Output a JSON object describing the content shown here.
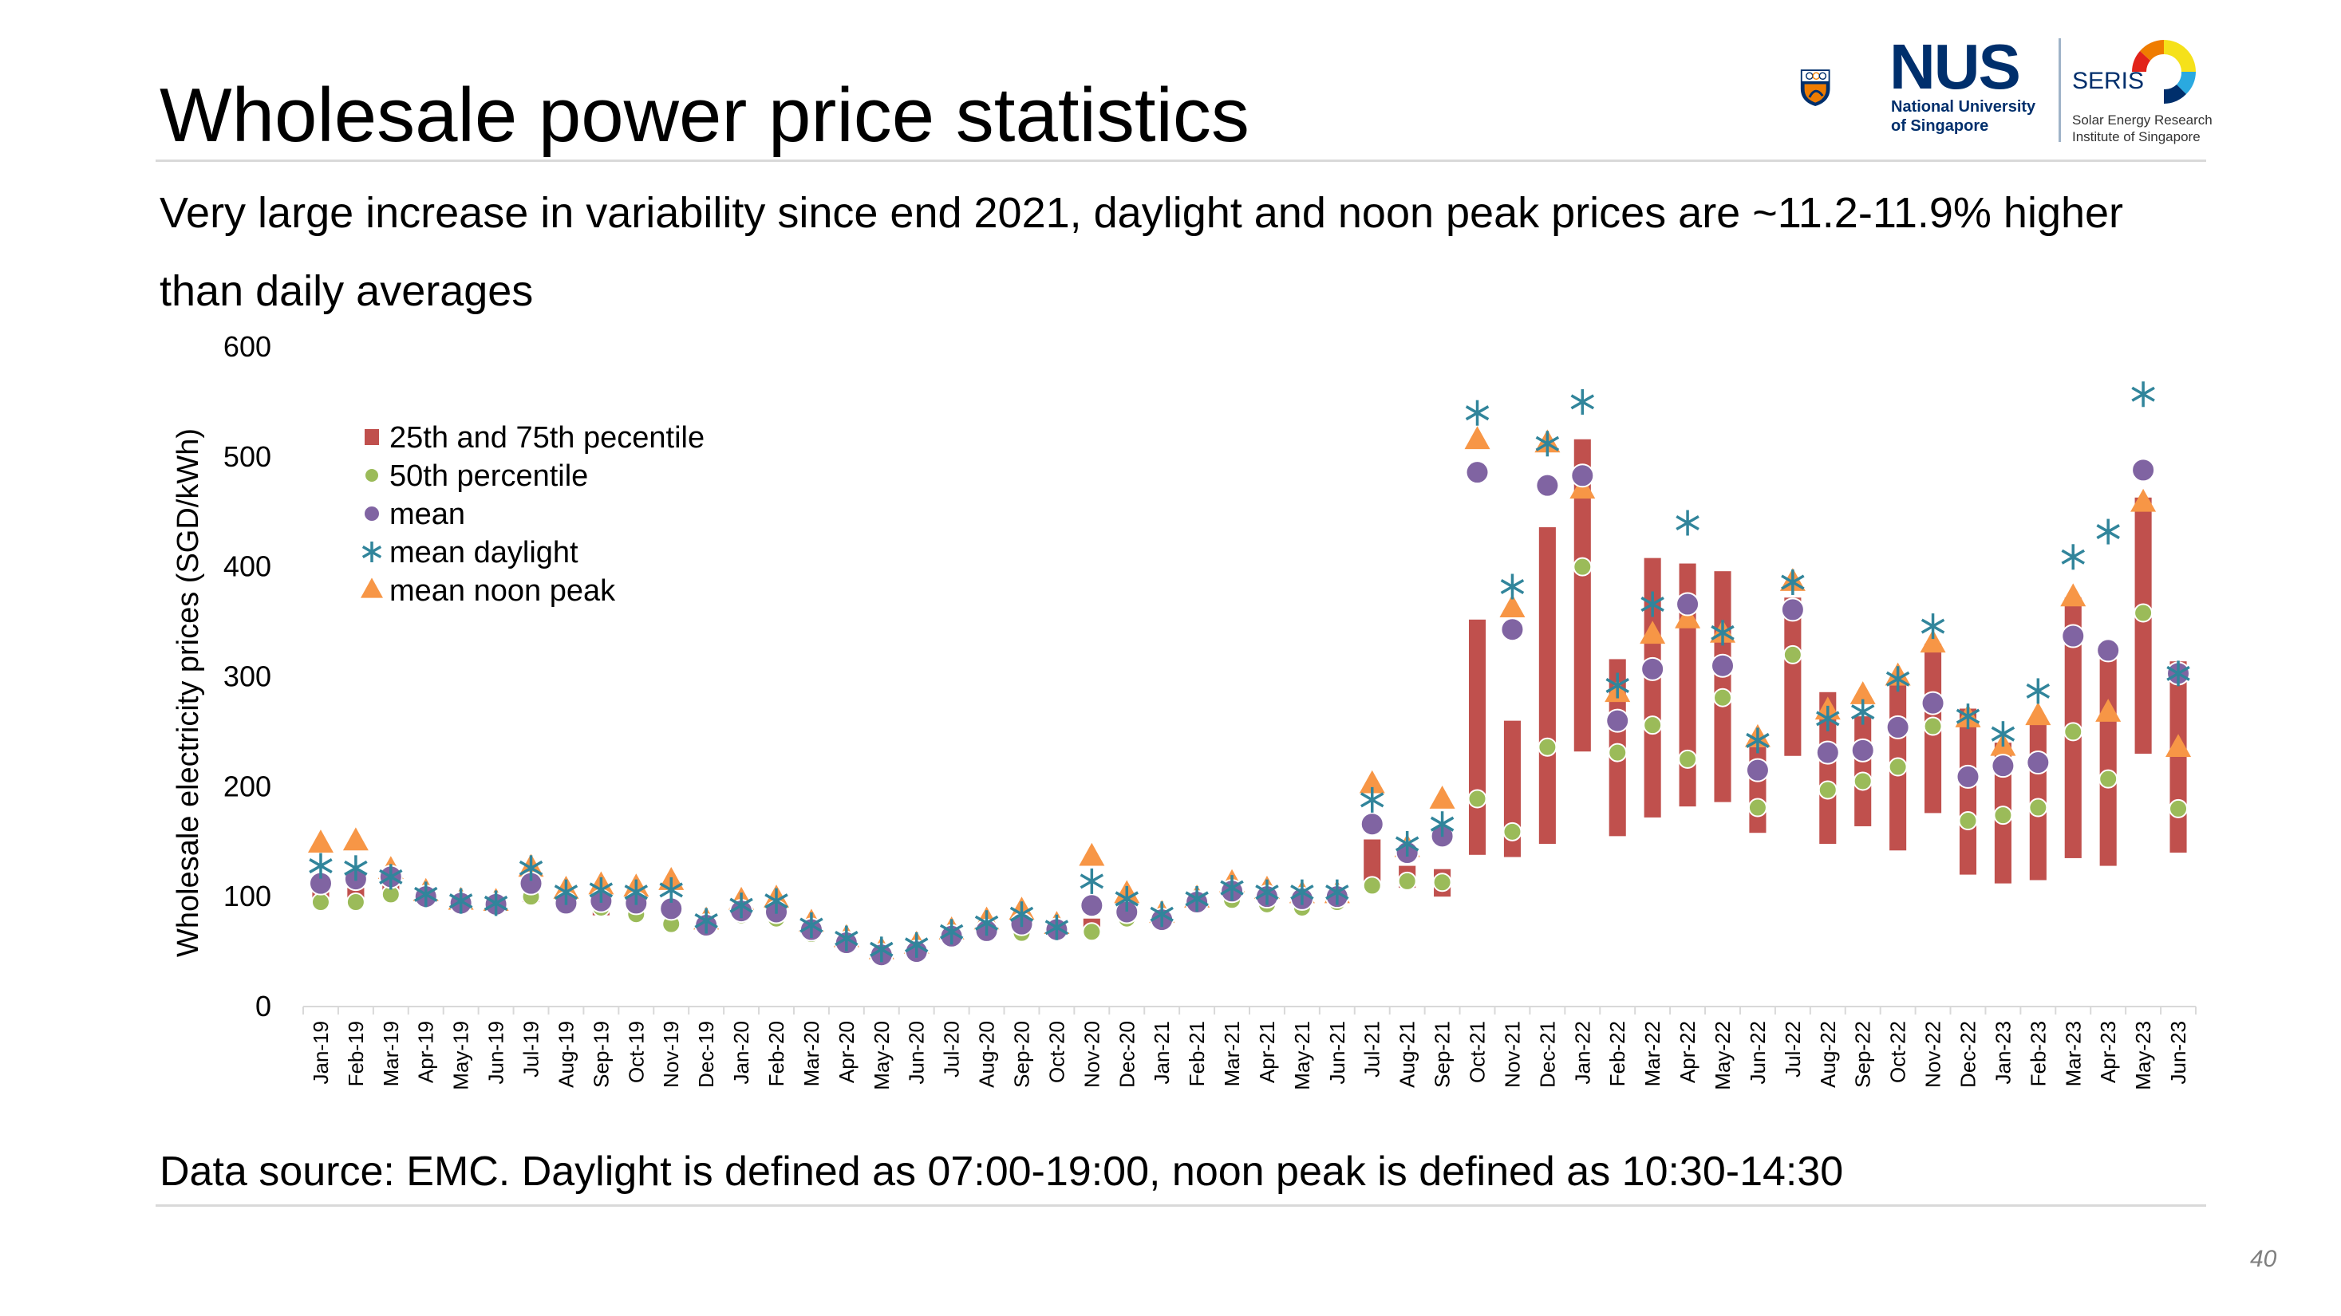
{
  "header": {
    "title": "Wholesale power price statistics",
    "subtitle": "Very large increase in variability since end 2021, daylight and noon peak prices are ~11.2-11.9% higher than daily averages"
  },
  "footer": {
    "source": "Data source: EMC. Daylight is defined as 07:00-19:00, noon peak is defined as 10:30-14:30",
    "page_number": "40"
  },
  "logos": {
    "nus_word": "NUS",
    "nus_line1": "National University",
    "nus_line2": "of Singapore",
    "seris_word": "SERIS",
    "seris_line1": "Solar Energy Research",
    "seris_line2": "Institute of Singapore"
  },
  "colors": {
    "range_bar": "#c0504d",
    "median": "#9bbb59",
    "mean": "#8064a2",
    "mean_daylight": "#31859b",
    "mean_noon_peak": "#f79646",
    "nus_blue": "#002f6c",
    "nus_orange": "#ef7c00"
  },
  "chart_data": {
    "type": "bar",
    "title": "",
    "xlabel": "",
    "ylabel": "Wholesale electricity prices (SGD/kWh)",
    "ylim": [
      0,
      600
    ],
    "yticks": [
      0,
      100,
      200,
      300,
      400,
      500,
      600
    ],
    "grid": false,
    "legend_position": "top-left",
    "categories": [
      "Jan-19",
      "Feb-19",
      "Mar-19",
      "Apr-19",
      "May-19",
      "Jun-19",
      "Jul-19",
      "Aug-19",
      "Sep-19",
      "Oct-19",
      "Nov-19",
      "Dec-19",
      "Jan-20",
      "Feb-20",
      "Mar-20",
      "Apr-20",
      "May-20",
      "Jun-20",
      "Jul-20",
      "Aug-20",
      "Sep-20",
      "Oct-20",
      "Nov-20",
      "Dec-20",
      "Jan-21",
      "Feb-21",
      "Mar-21",
      "Apr-21",
      "May-21",
      "Jun-21",
      "Jul-21",
      "Aug-21",
      "Sep-21",
      "Oct-21",
      "Nov-21",
      "Dec-21",
      "Jan-22",
      "Feb-22",
      "Mar-22",
      "Apr-22",
      "May-22",
      "Jun-22",
      "Jul-22",
      "Aug-22",
      "Sep-22",
      "Oct-22",
      "Nov-22",
      "Dec-22",
      "Jan-23",
      "Feb-23",
      "Mar-23",
      "Apr-23",
      "May-23",
      "Jun-23"
    ],
    "series": [
      {
        "name": "25th and 75th pecentile",
        "kind": "range",
        "low": [
          97,
          98,
          100,
          96,
          94,
          92,
          95,
          90,
          83,
          85,
          82,
          72,
          80,
          82,
          66,
          55,
          46,
          48,
          60,
          66,
          70,
          68,
          68,
          80,
          77,
          90,
          96,
          94,
          92,
          94,
          110,
          108,
          100,
          138,
          136,
          148,
          232,
          155,
          172,
          182,
          186,
          158,
          228,
          148,
          164,
          142,
          176,
          120,
          112,
          115,
          135,
          128,
          230,
          140
        ],
        "high": [
          108,
          108,
          110,
          102,
          98,
          96,
          110,
          100,
          96,
          94,
          92,
          80,
          90,
          92,
          72,
          62,
          52,
          54,
          68,
          74,
          78,
          74,
          80,
          90,
          84,
          98,
          104,
          100,
          100,
          100,
          152,
          128,
          125,
          352,
          260,
          436,
          516,
          316,
          408,
          403,
          396,
          236,
          372,
          286,
          264,
          292,
          330,
          271,
          240,
          262,
          372,
          316,
          463,
          314
        ]
      },
      {
        "name": "50th percentile",
        "kind": "circle",
        "values": [
          95,
          95,
          102,
          98,
          92,
          92,
          100,
          92,
          90,
          84,
          75,
          72,
          83,
          80,
          66,
          55,
          45,
          48,
          62,
          68,
          67,
          68,
          68,
          80,
          78,
          92,
          97,
          93,
          90,
          95,
          110,
          114,
          113,
          189,
          159,
          236,
          400,
          231,
          256,
          225,
          281,
          181,
          320,
          197,
          205,
          218,
          255,
          169,
          174,
          181,
          250,
          207,
          358,
          180
        ]
      },
      {
        "name": "mean",
        "kind": "circle",
        "values": [
          112,
          116,
          118,
          100,
          94,
          93,
          112,
          94,
          96,
          94,
          89,
          74,
          87,
          86,
          70,
          58,
          47,
          50,
          64,
          69,
          75,
          70,
          92,
          86,
          79,
          95,
          105,
          100,
          98,
          100,
          166,
          140,
          155,
          486,
          343,
          474,
          483,
          260,
          307,
          366,
          310,
          215,
          361,
          231,
          233,
          254,
          276,
          209,
          219,
          222,
          337,
          324,
          488,
          303
        ]
      },
      {
        "name": "mean daylight",
        "kind": "asterisk",
        "values": [
          128,
          126,
          118,
          102,
          96,
          94,
          126,
          104,
          106,
          104,
          106,
          78,
          92,
          96,
          74,
          62,
          52,
          56,
          68,
          76,
          84,
          72,
          114,
          98,
          84,
          98,
          108,
          104,
          104,
          104,
          188,
          148,
          166,
          540,
          382,
          512,
          550,
          292,
          366,
          440,
          340,
          242,
          386,
          262,
          268,
          298,
          346,
          264,
          248,
          287,
          409,
          432,
          557,
          303
        ]
      },
      {
        "name": "mean noon peak",
        "kind": "triangle",
        "values": [
          148,
          150,
          124,
          104,
          96,
          95,
          126,
          106,
          110,
          108,
          114,
          78,
          96,
          98,
          76,
          62,
          51,
          56,
          69,
          78,
          87,
          74,
          136,
          102,
          84,
          98,
          112,
          106,
          102,
          102,
          202,
          144,
          188,
          515,
          362,
          512,
          470,
          285,
          338,
          352,
          339,
          244,
          386,
          269,
          283,
          300,
          330,
          262,
          236,
          264,
          372,
          267,
          458,
          235
        ]
      }
    ]
  }
}
